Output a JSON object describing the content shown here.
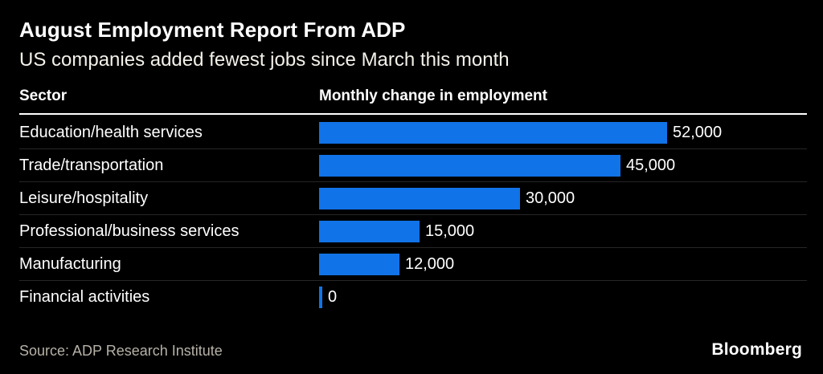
{
  "header": {
    "title": "August Employment Report From ADP",
    "subtitle": "US companies added fewest jobs since March this month"
  },
  "columns": {
    "sector": "Sector",
    "value": "Monthly change in employment"
  },
  "chart_data": {
    "type": "bar",
    "orientation": "horizontal",
    "title": "August Employment Report From ADP",
    "subtitle": "US companies added fewest jobs since March this month",
    "xlabel": "Monthly change in employment",
    "ylabel": "Sector",
    "xlim": [
      0,
      52000
    ],
    "grid": false,
    "legend": "none",
    "categories": [
      "Education/health services",
      "Trade/transportation",
      "Leisure/hospitality",
      "Professional/business services",
      "Manufacturing",
      "Financial activities"
    ],
    "values": [
      52000,
      45000,
      30000,
      15000,
      12000,
      0
    ],
    "value_labels": [
      "52,000",
      "45,000",
      "30,000",
      "15,000",
      "12,000",
      "0"
    ]
  },
  "footer": {
    "source": "Source: ADP Research Institute",
    "brand": "Bloomberg"
  },
  "colors": {
    "background": "#000000",
    "bar": "#1173E8",
    "text": "#ffffff",
    "muted": "#b7b2a8",
    "rule": "#ffffff"
  }
}
